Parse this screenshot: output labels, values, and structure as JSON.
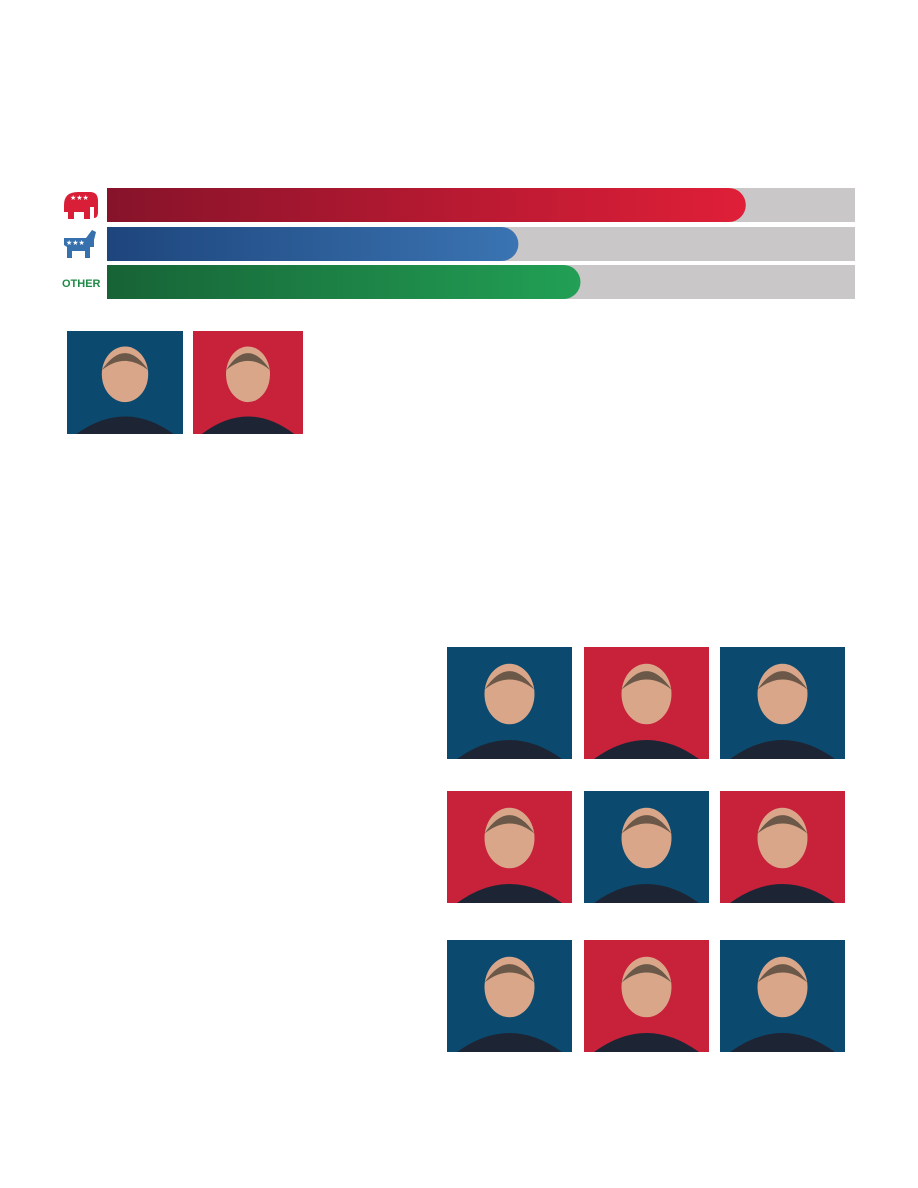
{
  "party_bars": {
    "type": "bar",
    "values": [
      85.4,
      55,
      63.3
    ],
    "xlim": [
      0,
      100
    ],
    "colors": [
      "#d81f37",
      "#3670ad",
      "#1f9a52"
    ],
    "other_label": "OTHER"
  }
}
